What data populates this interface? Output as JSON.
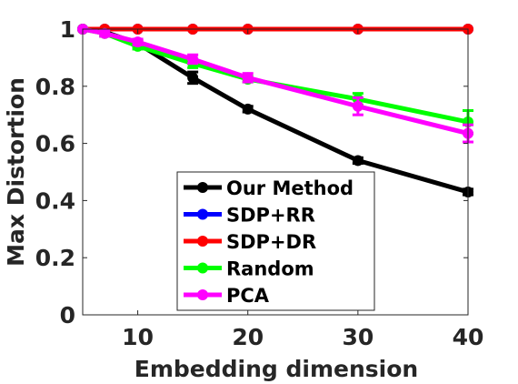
{
  "chart_data": {
    "type": "line",
    "xlabel": "Embedding dimension",
    "ylabel": "Max Distortion",
    "xlim": [
      5,
      40
    ],
    "ylim": [
      0,
      1
    ],
    "xticks": [
      10,
      20,
      30,
      40
    ],
    "yticks": [
      0,
      0.2,
      0.4,
      0.6,
      0.8,
      1
    ],
    "ytick_labels": [
      "0",
      "0.2",
      "0.4",
      "0.6",
      "0.8",
      "1"
    ],
    "x": [
      5,
      7,
      10,
      15,
      20,
      30,
      40
    ],
    "legend_position": "bottom-left",
    "grid": false,
    "series": [
      {
        "name": "Our Method",
        "color": "#000000",
        "values": [
          1.0,
          0.99,
          0.95,
          0.83,
          0.72,
          0.54,
          0.43
        ],
        "errors": [
          0,
          0,
          0.01,
          0.02,
          0.01,
          0.01,
          0.01
        ]
      },
      {
        "name": "SDP+RR",
        "color": "#0000ff",
        "values": [
          1.0,
          1.0,
          1.0,
          1.0,
          1.0,
          1.0,
          1.0
        ],
        "errors": [
          0,
          0,
          0,
          0,
          0,
          0,
          0
        ]
      },
      {
        "name": "SDP+DR",
        "color": "#ff0000",
        "values": [
          1.0,
          1.0,
          1.0,
          1.0,
          1.0,
          1.0,
          1.0
        ],
        "errors": [
          0,
          0,
          0,
          0,
          0,
          0,
          0
        ]
      },
      {
        "name": "Random",
        "color": "#00ff00",
        "values": [
          1.0,
          0.985,
          0.94,
          0.88,
          0.825,
          0.755,
          0.675
        ],
        "errors": [
          0,
          0.01,
          0.01,
          0.015,
          0.01,
          0.02,
          0.04
        ]
      },
      {
        "name": "PCA",
        "color": "#ff00ff",
        "values": [
          1.0,
          0.985,
          0.955,
          0.895,
          0.83,
          0.73,
          0.635
        ],
        "errors": [
          0,
          0.01,
          0.01,
          0.015,
          0.015,
          0.03,
          0.03
        ]
      }
    ]
  }
}
